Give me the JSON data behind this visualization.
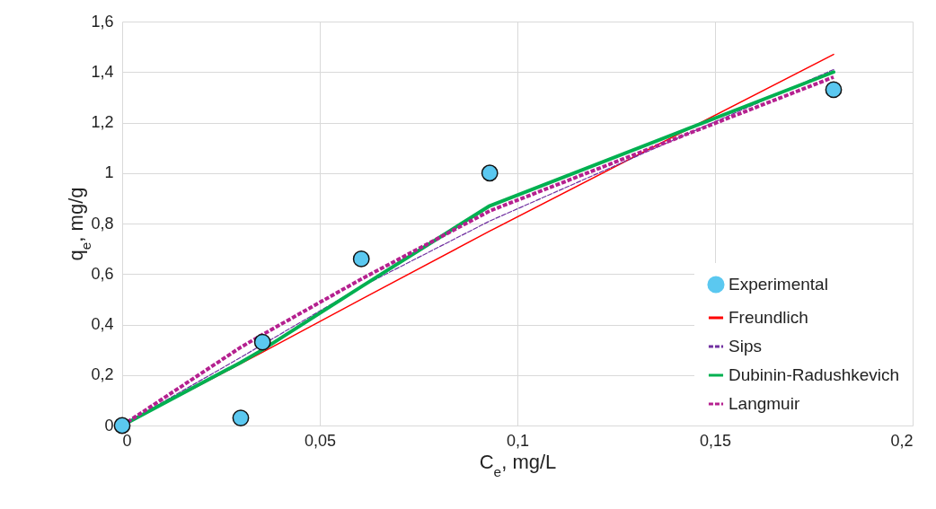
{
  "chart_data": {
    "type": "scatter",
    "xlabel": "C$_{e}$, mg/L",
    "ylabel": "q$_{e}$, mg/g",
    "xlim": [
      0,
      0.2
    ],
    "xticks": [
      0,
      {
        "value": 0.05,
        "label": "0,05"
      },
      {
        "value": 0.1,
        "label": "0,1"
      },
      {
        "value": 0.15,
        "label": "0,15"
      },
      {
        "value": 0.2,
        "label": "0,2"
      }
    ],
    "ylim": [
      0,
      1.6
    ],
    "yticks": [
      0,
      {
        "value": 0.2,
        "label": "0,2"
      },
      {
        "value": 0.4,
        "label": "0,4"
      },
      {
        "value": 0.6,
        "label": "0,6"
      },
      {
        "value": 0.8,
        "label": "0,8"
      },
      1,
      {
        "value": 1.2,
        "label": "1,2"
      },
      {
        "value": 1.4,
        "label": "1,4"
      },
      {
        "value": 1.6,
        "label": "1,6"
      }
    ],
    "grid": true,
    "legend": "bottom right",
    "series": [
      {
        "name": "Experimental",
        "marker": "circle",
        "color": "#5bc8f0",
        "x": [
          0,
          0.03,
          0.0355,
          0.0605,
          0.093,
          0.18
        ],
        "values": [
          0,
          0.03,
          0.33,
          0.66,
          1.0,
          1.33
        ]
      },
      {
        "name": "Freundlich",
        "type": "line",
        "marker": "none",
        "line_style": "solid",
        "color": "#ff0000",
        "x": [
          0,
          0.0355,
          0.0605,
          0.093,
          0.18
        ],
        "values": [
          0,
          0.29,
          0.5,
          0.77,
          1.47
        ]
      },
      {
        "name": "Sips",
        "type": "line",
        "marker": "none",
        "line_style": "dashed",
        "color": "#7030a0",
        "x": [
          0,
          0.03,
          0.0605,
          0.093,
          0.18
        ],
        "values": [
          0,
          0.27,
          0.55,
          0.81,
          1.41
        ]
      },
      {
        "name": "Dubinin-Radushkevich",
        "type": "line",
        "marker": "none",
        "line_style": "solid",
        "color": "#00b050",
        "x": [
          0,
          0.03,
          0.0355,
          0.0605,
          0.093,
          0.18
        ],
        "values": [
          0,
          0.25,
          0.3,
          0.55,
          0.87,
          1.4
        ]
      },
      {
        "name": "Langmuir",
        "type": "line",
        "marker": "none",
        "line_style": "dashed",
        "color": "#b5208f",
        "x": [
          0,
          0.03,
          0.0355,
          0.0605,
          0.093,
          0.18
        ],
        "values": [
          0,
          0.31,
          0.36,
          0.58,
          0.85,
          1.38
        ]
      }
    ]
  }
}
